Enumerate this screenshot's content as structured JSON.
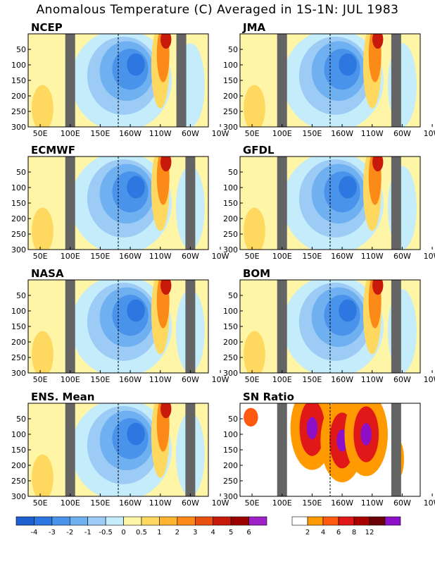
{
  "title": "Anomalous Temperature (C) Averaged in 1S-1N: JUL 1983",
  "chart_data": [
    {
      "type": "heatmap",
      "name": "NCEP",
      "x_ticks": [
        "50E",
        "100E",
        "150E",
        "160W",
        "110W",
        "60W",
        "10W"
      ],
      "y_ticks": [
        50,
        100,
        150,
        200,
        250,
        300
      ],
      "ylim": [
        300,
        0
      ],
      "masked_bands": [
        "100E",
        "75W"
      ],
      "features": [
        {
          "kind": "cold",
          "value": -3,
          "lon": "170W",
          "depth": 120
        },
        {
          "kind": "warm",
          "value": 2,
          "lon": "110W",
          "depth": 40
        }
      ]
    },
    {
      "type": "heatmap",
      "name": "JMA",
      "x_ticks": [
        "50E",
        "100E",
        "150E",
        "160W",
        "110W",
        "60W",
        "10W"
      ],
      "y_ticks": [
        50,
        100,
        150,
        200,
        250,
        300
      ],
      "ylim": [
        300,
        0
      ],
      "masked_bands": [
        "100E",
        "70W"
      ],
      "features": [
        {
          "kind": "cold",
          "value": -3,
          "lon": "170W",
          "depth": 120
        },
        {
          "kind": "warm",
          "value": 3,
          "lon": "95W",
          "depth": 60
        }
      ]
    },
    {
      "type": "heatmap",
      "name": "ECMWF",
      "x_ticks": [
        "50E",
        "100E",
        "150E",
        "160W",
        "110W",
        "60W",
        "10W"
      ],
      "y_ticks": [
        50,
        100,
        150,
        200,
        250,
        300
      ],
      "ylim": [
        300,
        0
      ],
      "masked_bands": [
        "100E",
        "60W"
      ],
      "features": [
        {
          "kind": "cold",
          "value": -3,
          "lon": "170W",
          "depth": 110
        },
        {
          "kind": "warm",
          "value": 4,
          "lon": "100W",
          "depth": 30
        }
      ]
    },
    {
      "type": "heatmap",
      "name": "GFDL",
      "x_ticks": [
        "50E",
        "100E",
        "150E",
        "160W",
        "110W",
        "60W",
        "10W"
      ],
      "y_ticks": [
        50,
        100,
        150,
        200,
        250,
        300
      ],
      "ylim": [
        300,
        0
      ],
      "masked_bands": [
        "100E",
        "70W"
      ],
      "features": [
        {
          "kind": "cold",
          "value": -3,
          "lon": "170W",
          "depth": 120
        },
        {
          "kind": "warm",
          "value": 3,
          "lon": "95W",
          "depth": 70
        }
      ]
    },
    {
      "type": "heatmap",
      "name": "NASA",
      "x_ticks": [
        "50E",
        "100E",
        "150E",
        "160W",
        "110W",
        "60W",
        "10W"
      ],
      "y_ticks": [
        50,
        100,
        150,
        200,
        250,
        300
      ],
      "ylim": [
        300,
        0
      ],
      "masked_bands": [
        "100E",
        "60W"
      ],
      "features": [
        {
          "kind": "cold",
          "value": -3,
          "lon": "170W",
          "depth": 120
        },
        {
          "kind": "warm",
          "value": 4,
          "lon": "95W",
          "depth": 30
        }
      ]
    },
    {
      "type": "heatmap",
      "name": "BOM",
      "x_ticks": [
        "50E",
        "100E",
        "150E",
        "160W",
        "110W",
        "60W",
        "10W"
      ],
      "y_ticks": [
        50,
        100,
        150,
        200,
        250,
        300
      ],
      "ylim": [
        300,
        0
      ],
      "masked_bands": [
        "100E",
        "70W"
      ],
      "features": [
        {
          "kind": "cold",
          "value": -3,
          "lon": "175W",
          "depth": 140
        },
        {
          "kind": "warm",
          "value": 3,
          "lon": "100W",
          "depth": 60
        }
      ]
    },
    {
      "type": "heatmap",
      "name": "ENS. Mean",
      "x_ticks": [
        "50E",
        "100E",
        "150E",
        "160W",
        "110W",
        "60W",
        "10W"
      ],
      "y_ticks": [
        50,
        100,
        150,
        200,
        250,
        300
      ],
      "ylim": [
        300,
        0
      ],
      "masked_bands": [
        "100E",
        "60W"
      ],
      "features": [
        {
          "kind": "cold",
          "value": -3,
          "lon": "170W",
          "depth": 120
        },
        {
          "kind": "warm",
          "value": 3,
          "lon": "105W",
          "depth": 40
        }
      ]
    },
    {
      "type": "heatmap",
      "name": "SN Ratio",
      "x_ticks": [
        "50E",
        "100E",
        "150E",
        "160W",
        "110W",
        "60W",
        "10W"
      ],
      "y_ticks": [
        50,
        100,
        150,
        200,
        250,
        300
      ],
      "ylim": [
        300,
        0
      ],
      "masked_bands": [
        "100E",
        "70W"
      ],
      "features": [
        {
          "kind": "high",
          "value": 8,
          "lon": "150E",
          "depth": 80
        },
        {
          "kind": "high",
          "value": 12,
          "lon": "160W",
          "depth": 120
        },
        {
          "kind": "high",
          "value": 6,
          "lon": "120W",
          "depth": 100
        }
      ]
    }
  ],
  "colorbars": [
    {
      "name": "temperature",
      "labels": [
        "-4",
        "-3",
        "-2",
        "-1",
        "-0.5",
        "0",
        "0.5",
        "1",
        "2",
        "3",
        "4",
        "5",
        "6"
      ],
      "colors": [
        "#1e60d0",
        "#2c78e0",
        "#4a93ea",
        "#6fb0f0",
        "#9ccbf6",
        "#c4ecfa",
        "#fff5a6",
        "#ffd860",
        "#ffb430",
        "#fb8a18",
        "#e85010",
        "#c81a0a",
        "#9a0000",
        "#a020c8"
      ]
    },
    {
      "name": "sn_ratio",
      "labels": [
        "2",
        "4",
        "6",
        "8",
        "12"
      ],
      "colors": [
        "#ffffff",
        "#ff9a00",
        "#ff5a10",
        "#e01818",
        "#a80000",
        "#6a0008",
        "#8c10c8"
      ]
    }
  ]
}
